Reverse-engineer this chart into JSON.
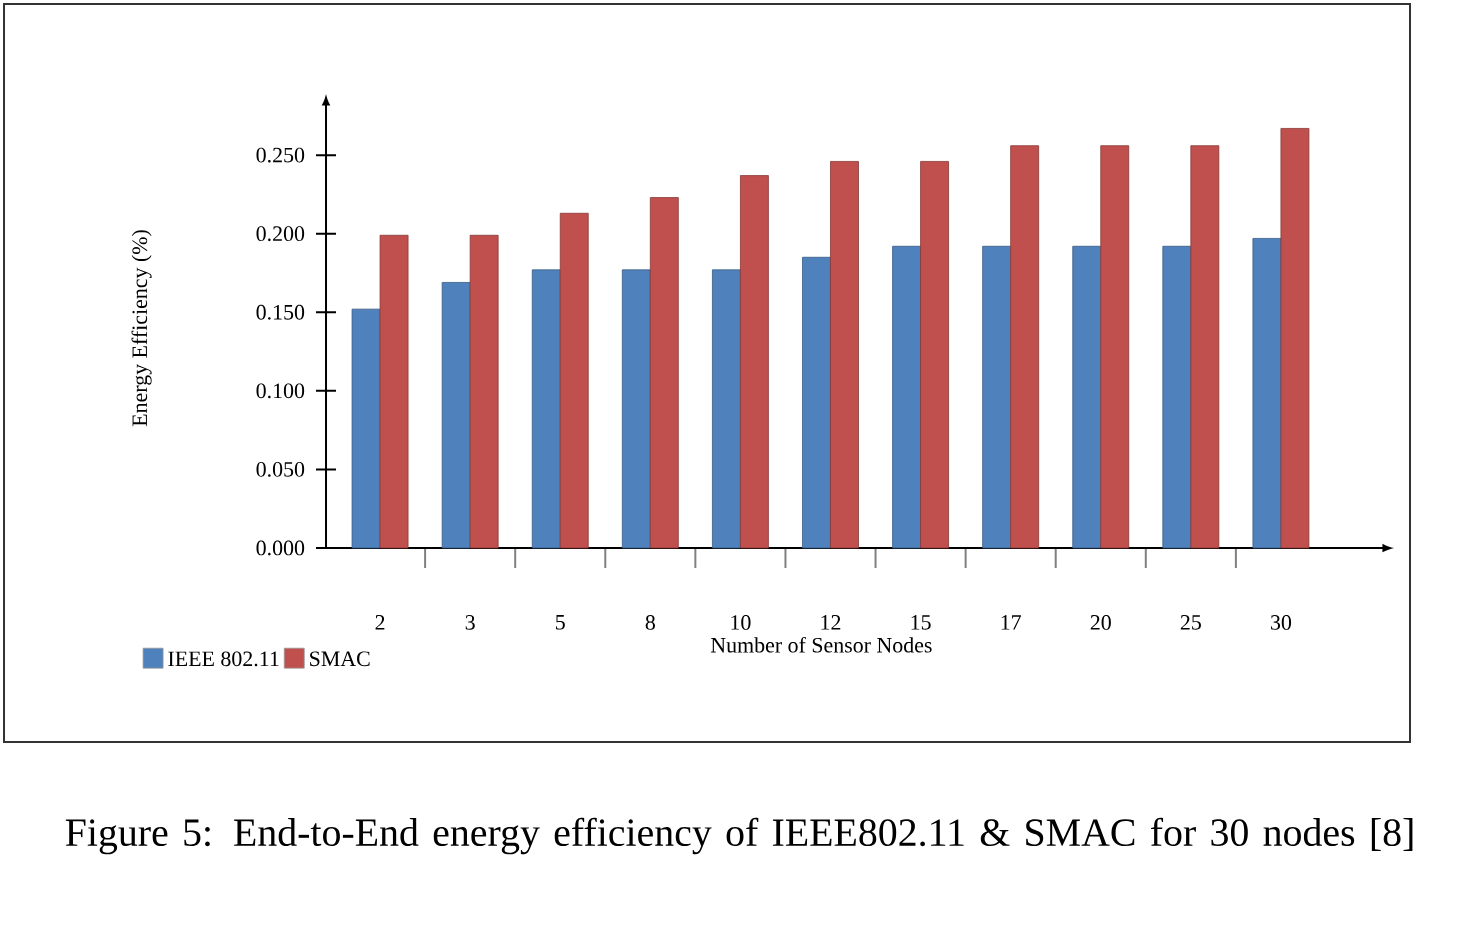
{
  "chart_data": {
    "type": "bar",
    "xlabel": "Number of Sensor Nodes",
    "ylabel": "Energy Efficiency (%)",
    "categories": [
      "2",
      "3",
      "5",
      "8",
      "10",
      "12",
      "15",
      "17",
      "20",
      "25",
      "30"
    ],
    "series": [
      {
        "name": "IEEE 802.11",
        "color": "#4f81bd",
        "values": [
          0.152,
          0.169,
          0.177,
          0.177,
          0.177,
          0.185,
          0.192,
          0.192,
          0.192,
          0.192,
          0.197
        ]
      },
      {
        "name": "SMAC",
        "color": "#c0504d",
        "values": [
          0.199,
          0.199,
          0.213,
          0.223,
          0.237,
          0.246,
          0.246,
          0.256,
          0.256,
          0.256,
          0.267
        ]
      }
    ],
    "ylim": [
      0,
      0.28
    ],
    "yticks": [
      {
        "value": 0,
        "label": "0.000"
      },
      {
        "value": 0.05,
        "label": "0.050"
      },
      {
        "value": 0.1,
        "label": "0.100"
      },
      {
        "value": 0.15,
        "label": "0.150"
      },
      {
        "value": 0.2,
        "label": "0.200"
      },
      {
        "value": 0.25,
        "label": "0.250"
      }
    ],
    "legend": "bottom left",
    "grid": false,
    "annotations": [
      "Figure 5: End-to-End energy efficiency of IEEE802.11 & SMAC for 30 nodes [8]"
    ]
  }
}
